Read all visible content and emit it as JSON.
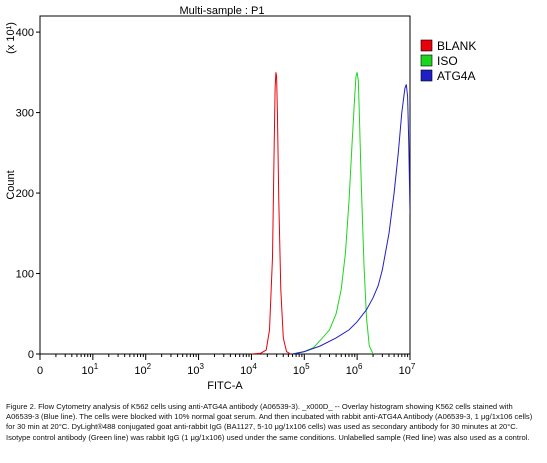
{
  "chart_data": {
    "type": "line",
    "title": "Multi-sample : P1",
    "xlabel": "FITC-A",
    "ylabel": "Count",
    "ylabel_multiplier": "(x 10¹)",
    "x_scale": "log",
    "xlim": [
      1,
      10000000
    ],
    "ylim": [
      0,
      420
    ],
    "x_ticks": [
      {
        "value": 1,
        "base": "0",
        "exp": ""
      },
      {
        "value": 10,
        "base": "10",
        "exp": "1"
      },
      {
        "value": 100,
        "base": "10",
        "exp": "2"
      },
      {
        "value": 1000,
        "base": "10",
        "exp": "3"
      },
      {
        "value": 10000,
        "base": "10",
        "exp": "4"
      },
      {
        "value": 100000,
        "base": "10",
        "exp": "5"
      },
      {
        "value": 1000000,
        "base": "10",
        "exp": "6"
      },
      {
        "value": 10000000,
        "base": "10",
        "exp": "7"
      }
    ],
    "y_ticks": [
      0,
      100,
      200,
      300,
      400
    ],
    "grid": false,
    "legend_position": "right",
    "series": [
      {
        "name": "BLANK",
        "color": "#e8000b",
        "x": [
          10000,
          15000,
          19000,
          22000,
          25000,
          27000,
          28000,
          29000,
          30000,
          31000,
          33000,
          36000,
          40000,
          46000,
          55000
        ],
        "y": [
          0,
          1,
          5,
          30,
          120,
          260,
          330,
          350,
          345,
          300,
          190,
          80,
          20,
          3,
          0
        ]
      },
      {
        "name": "ISO",
        "color": "#1ed51e",
        "x": [
          60000,
          100000,
          150000,
          220000,
          300000,
          400000,
          500000,
          600000,
          700000,
          800000,
          900000,
          950000,
          1000000,
          1050000,
          1100000,
          1200000,
          1350000,
          1500000,
          1700000,
          2000000
        ],
        "y": [
          0,
          3,
          8,
          20,
          30,
          50,
          80,
          125,
          190,
          260,
          320,
          345,
          350,
          340,
          300,
          210,
          110,
          45,
          10,
          0
        ]
      },
      {
        "name": "ATG4A",
        "color": "#1f1fc8",
        "x": [
          60000,
          100000,
          200000,
          400000,
          700000,
          1000000,
          1500000,
          2000000,
          2500000,
          3000000,
          4000000,
          5000000,
          6000000,
          7000000,
          8000000,
          8500000,
          9000000,
          9500000,
          10000000
        ],
        "y": [
          0,
          3,
          10,
          20,
          30,
          40,
          55,
          70,
          85,
          105,
          150,
          200,
          250,
          300,
          330,
          335,
          320,
          260,
          175
        ]
      }
    ]
  },
  "caption": "Figure 2. Flow Cytometry analysis of K562 cells using anti-ATG4A antibody (A06539-3). _x000D_ -- Overlay histogram showing K562 cells stained with A06539-3 (Blue line). The cells were blocked with 10% normal goat serum. And then incubated with rabbit anti-ATG4A Antibody (A06539-3, 1 μg/1x106 cells) for 30 min at 20°C. DyLight®488 conjugated goat anti-rabbit IgG (BA1127, 5-10 μg/1x106 cells) was used as secondary antibody for 30 minutes at 20°C. Isotype control antibody (Green line) was rabbit IgG (1 μg/1x106) used under the same conditions. Unlabelled sample (Red line) was also used as a control."
}
